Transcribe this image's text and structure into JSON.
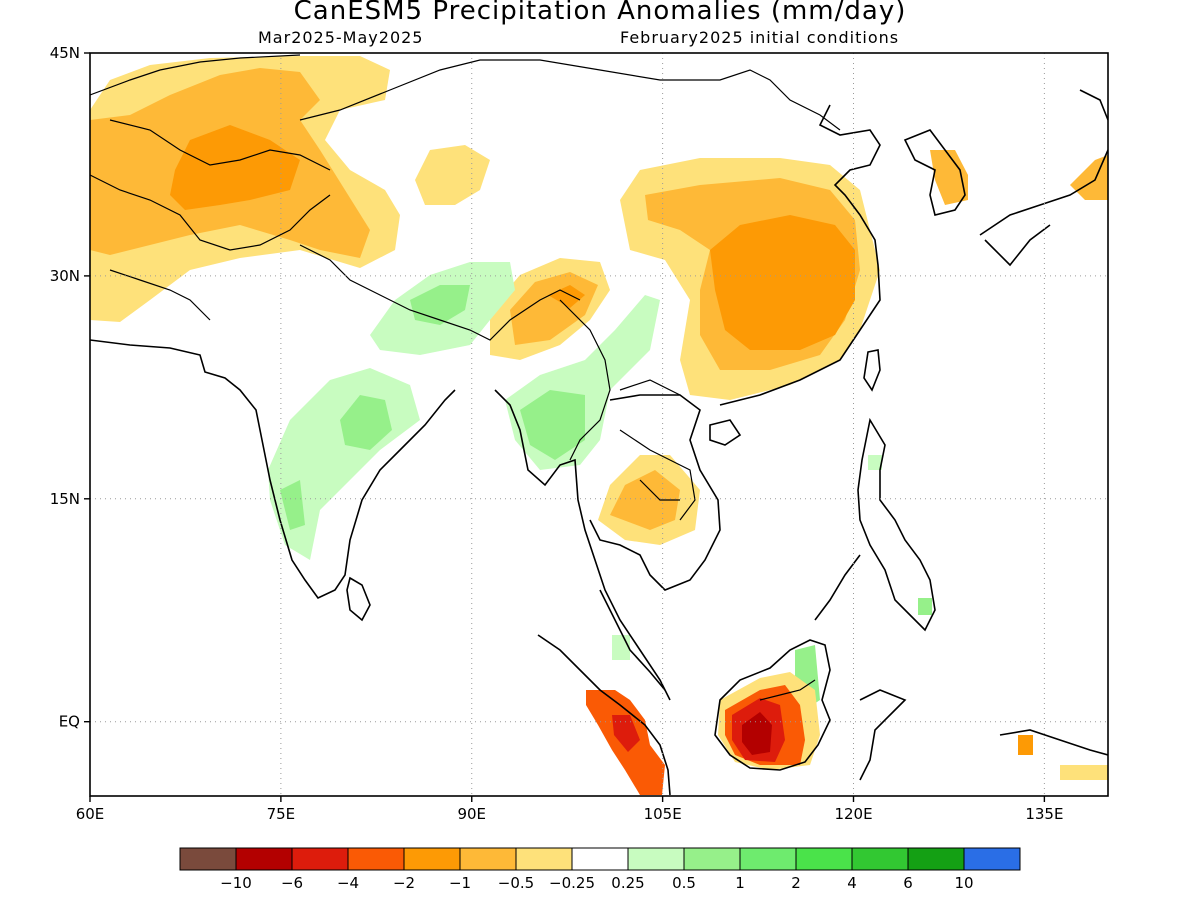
{
  "title": "CanESM5 Precipitation Anomalies (mm/day)",
  "period": "Mar2025-May2025",
  "init": "February2025 initial conditions",
  "map": {
    "lon_range": [
      60,
      140
    ],
    "lat_range": [
      -5,
      45
    ],
    "lon_ticks": [
      {
        "value": 60,
        "label": "60E"
      },
      {
        "value": 75,
        "label": "75E"
      },
      {
        "value": 90,
        "label": "90E"
      },
      {
        "value": 105,
        "label": "105E"
      },
      {
        "value": 120,
        "label": "120E"
      },
      {
        "value": 135,
        "label": "135E"
      }
    ],
    "lat_ticks": [
      {
        "value": 45,
        "label": "45N"
      },
      {
        "value": 30,
        "label": "30N"
      },
      {
        "value": 15,
        "label": "15N"
      },
      {
        "value": 0,
        "label": "EQ"
      }
    ],
    "grid": "dotted"
  },
  "colorbar": {
    "colors": [
      "#7a4a3c",
      "#b30000",
      "#dd1c0c",
      "#fa5a05",
      "#fd9a05",
      "#feb937",
      "#fee17a",
      "#ffffff",
      "#c8fcc0",
      "#96f08a",
      "#6eeb6e",
      "#4ae34a",
      "#32c832",
      "#14a014",
      "#2a6ee6"
    ],
    "labels": [
      "-10",
      "-6",
      "-4",
      "-2",
      "-1",
      "-0.5",
      "-0.25",
      "0.25",
      "0.5",
      "1",
      "2",
      "4",
      "6",
      "10"
    ]
  }
}
